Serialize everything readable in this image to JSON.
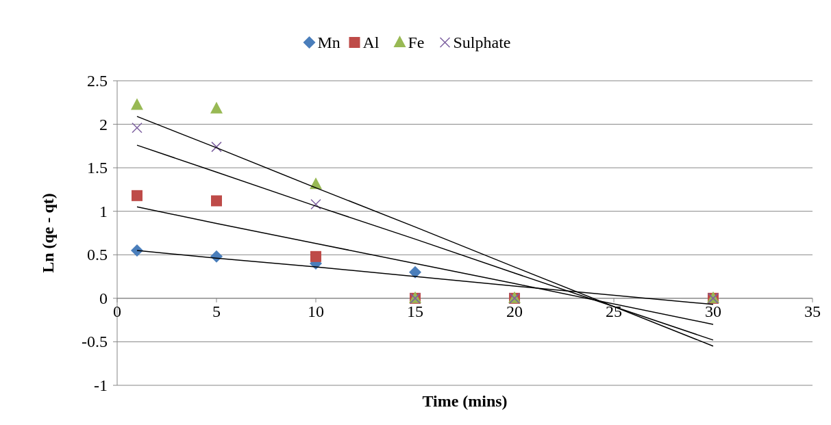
{
  "chart_data": {
    "type": "scatter",
    "xlabel": "Time (mins)",
    "ylabel": "Ln (qe - qt)",
    "xlim": [
      0,
      35
    ],
    "xticks": [
      0,
      5,
      10,
      15,
      20,
      25,
      30,
      35
    ],
    "ylim": [
      -1,
      2.5
    ],
    "yticks": [
      -1,
      -0.5,
      0,
      0.5,
      1,
      1.5,
      2,
      2.5
    ],
    "grid": "y",
    "legend": "top",
    "x": [
      1,
      5,
      10,
      15,
      20,
      30
    ],
    "series": [
      {
        "name": "Mn",
        "color": "#4a7ebb",
        "marker": "diamond",
        "values": [
          0.55,
          0.48,
          0.4,
          0.3,
          null,
          null
        ]
      },
      {
        "name": "Al",
        "color": "#be4b48",
        "marker": "square",
        "values": [
          1.18,
          1.12,
          0.48,
          0,
          0,
          0
        ]
      },
      {
        "name": "Fe",
        "color": "#98b954",
        "marker": "triangle",
        "values": [
          2.22,
          2.18,
          1.31,
          0,
          0,
          0
        ]
      },
      {
        "name": "Sulphate",
        "color": "#7d60a0",
        "marker": "cross",
        "values": [
          1.96,
          1.74,
          1.08,
          0,
          0,
          0
        ]
      },
      {
        "type": "line",
        "color": "#000000",
        "values": [
          0.55,
          0.46,
          0.36,
          0.25,
          0.14,
          -0.07
        ]
      },
      {
        "type": "line",
        "color": "#000000",
        "values": [
          1.05,
          0.86,
          0.63,
          0.4,
          0.17,
          -0.3
        ]
      },
      {
        "type": "line",
        "color": "#000000",
        "values": [
          2.09,
          1.73,
          1.27,
          0.82,
          0.36,
          -0.55
        ]
      },
      {
        "type": "line",
        "color": "#000000",
        "values": [
          1.76,
          1.45,
          1.06,
          0.68,
          0.29,
          -0.48
        ]
      }
    ]
  }
}
